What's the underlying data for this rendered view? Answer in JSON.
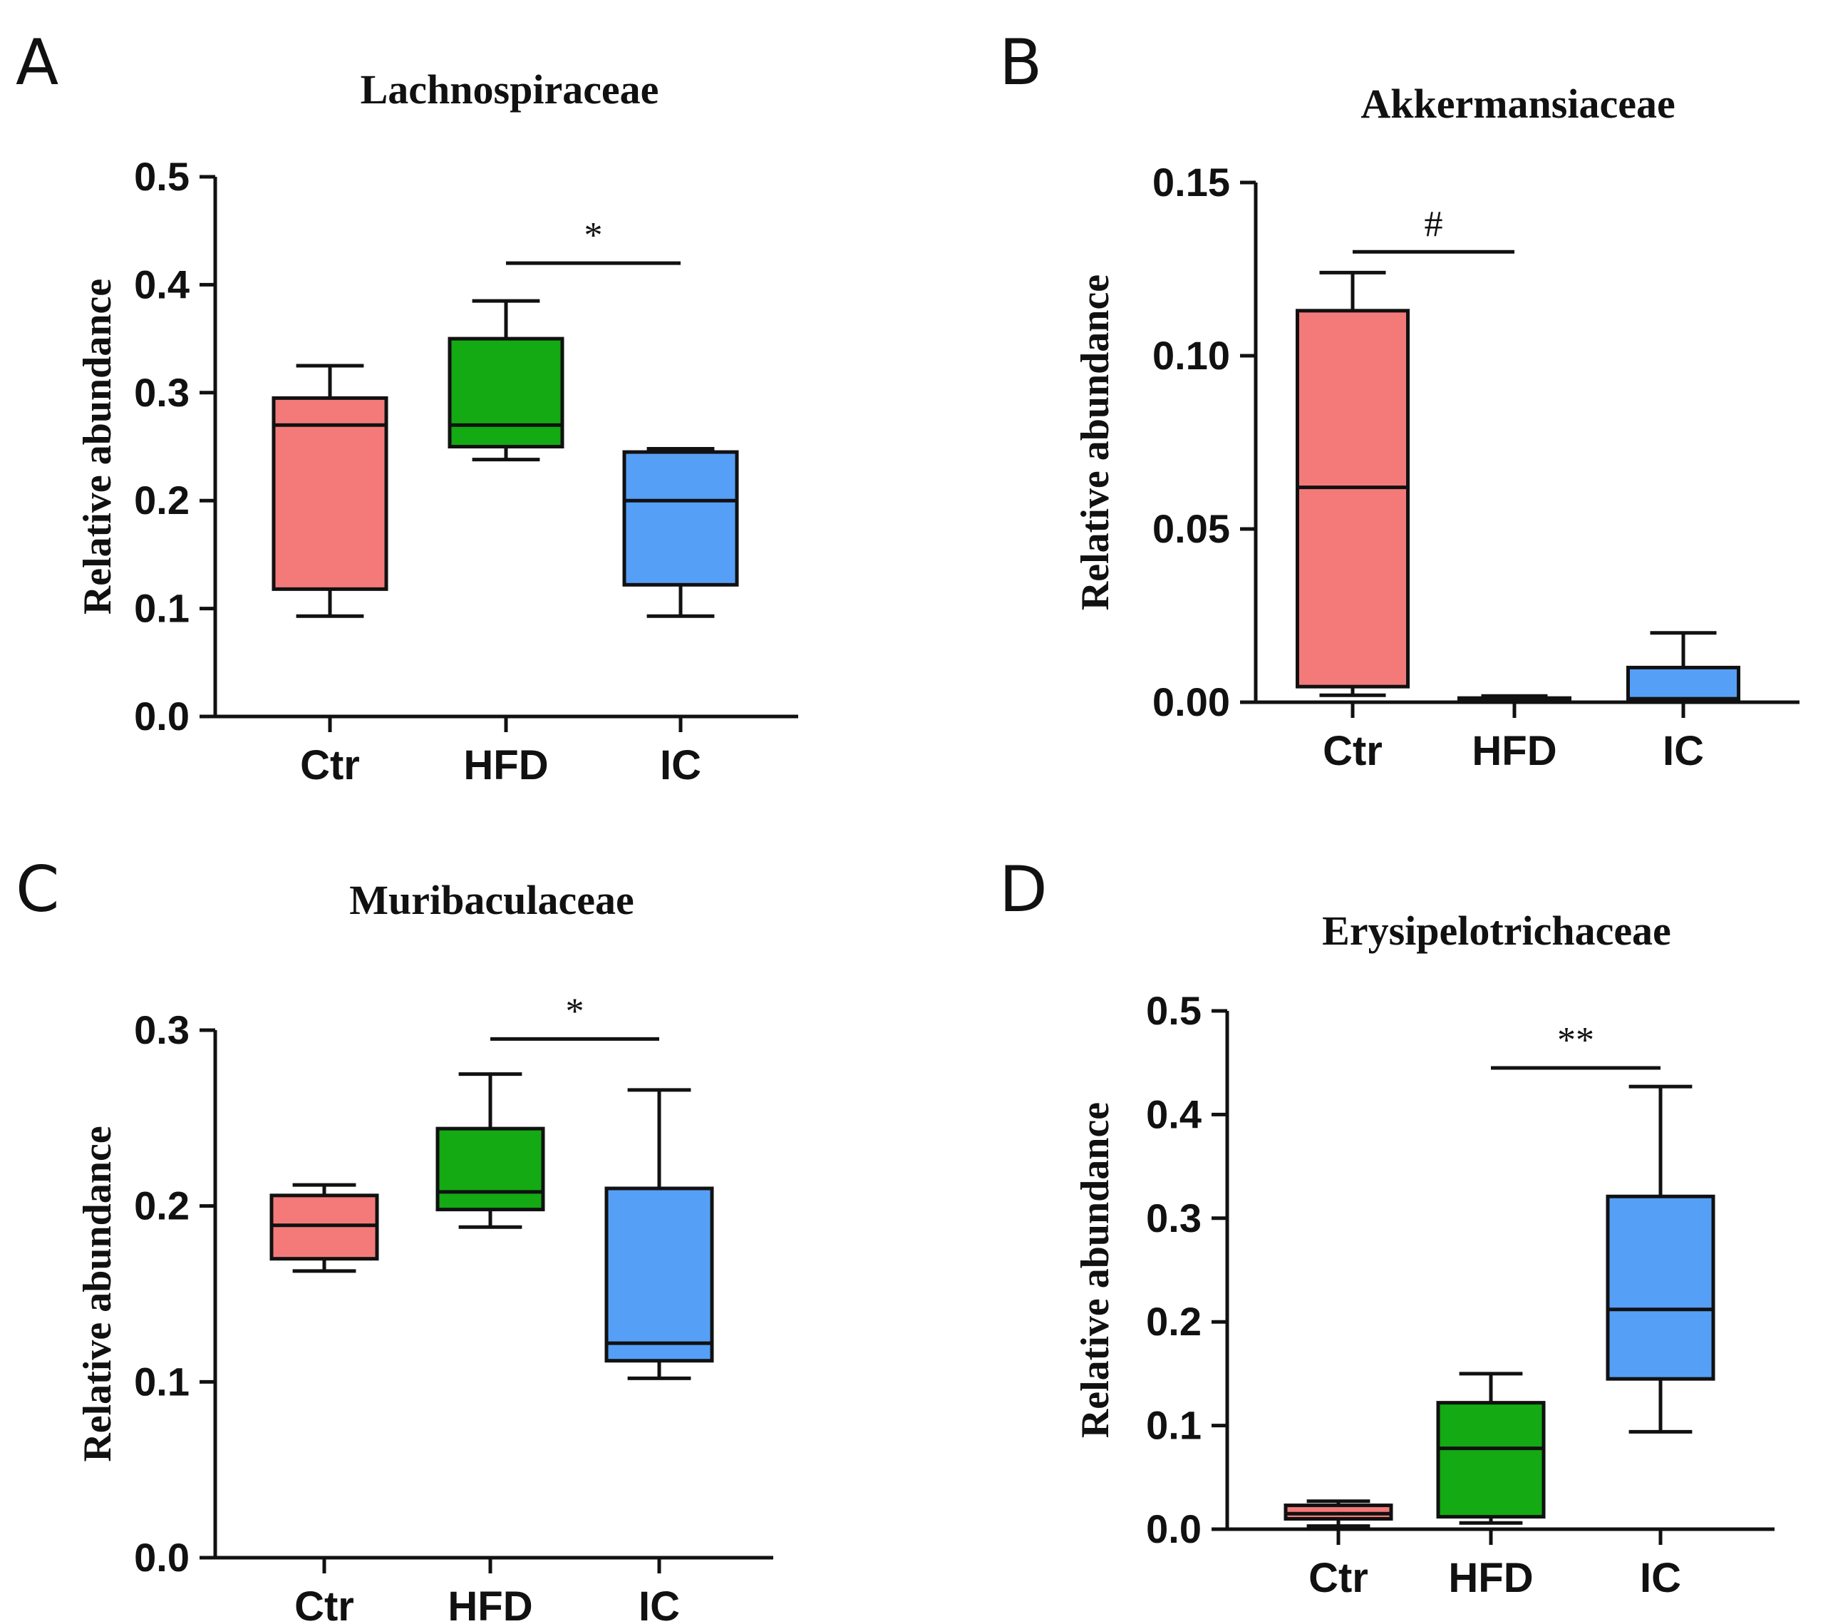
{
  "chart_data": [
    {
      "panel": "A",
      "type": "box",
      "title": "Lachnospiraceae",
      "ylabel": "Relative abundance",
      "ylim": [
        0,
        0.5
      ],
      "yticks": [
        "0.0",
        "0.1",
        "0.2",
        "0.3",
        "0.4",
        "0.5"
      ],
      "categories": [
        "Ctr",
        "HFD",
        "IC"
      ],
      "colors": [
        "#f47a7a",
        "#13aa13",
        "#569ff7"
      ],
      "boxes": [
        {
          "min": 0.093,
          "q1": 0.118,
          "median": 0.27,
          "q3": 0.295,
          "max": 0.325
        },
        {
          "min": 0.238,
          "q1": 0.25,
          "median": 0.27,
          "q3": 0.35,
          "max": 0.385
        },
        {
          "min": 0.093,
          "q1": 0.122,
          "median": 0.2,
          "q3": 0.245,
          "max": 0.248
        }
      ],
      "significance": [
        {
          "from": 1,
          "to": 2,
          "label": "*",
          "y": 0.42
        }
      ]
    },
    {
      "panel": "B",
      "type": "box",
      "title": "Akkermansiaceae",
      "ylabel": "Relative abundance",
      "ylim": [
        0,
        0.15
      ],
      "yticks": [
        "0.00",
        "0.05",
        "0.10",
        "0.15"
      ],
      "categories": [
        "Ctr",
        "HFD",
        "IC"
      ],
      "colors": [
        "#f47a7a",
        "#13aa13",
        "#569ff7"
      ],
      "boxes": [
        {
          "min": 0.002,
          "q1": 0.0045,
          "median": 0.062,
          "q3": 0.113,
          "max": 0.124
        },
        {
          "min": 0.0002,
          "q1": 0.0005,
          "median": 0.0008,
          "q3": 0.0012,
          "max": 0.0018
        },
        {
          "min": 0.0003,
          "q1": 0.0008,
          "median": 0.001,
          "q3": 0.01,
          "max": 0.02
        }
      ],
      "significance": [
        {
          "from": 0,
          "to": 1,
          "label": "#",
          "y": 0.13
        }
      ]
    },
    {
      "panel": "C",
      "type": "box",
      "title": "Muribaculaceae",
      "ylabel": "Relative abundance",
      "ylim": [
        0,
        0.3
      ],
      "yticks": [
        "0.0",
        "0.1",
        "0.2",
        "0.3"
      ],
      "categories": [
        "Ctr",
        "HFD",
        "IC"
      ],
      "colors": [
        "#f47a7a",
        "#13aa13",
        "#569ff7"
      ],
      "boxes": [
        {
          "min": 0.163,
          "q1": 0.17,
          "median": 0.189,
          "q3": 0.206,
          "max": 0.212
        },
        {
          "min": 0.188,
          "q1": 0.198,
          "median": 0.208,
          "q3": 0.244,
          "max": 0.275
        },
        {
          "min": 0.102,
          "q1": 0.112,
          "median": 0.122,
          "q3": 0.21,
          "max": 0.266
        }
      ],
      "significance": [
        {
          "from": 1,
          "to": 2,
          "label": "*",
          "y": 0.295
        }
      ]
    },
    {
      "panel": "D",
      "type": "box",
      "title": "Erysipelotrichaceae",
      "ylabel": "Relative abundance",
      "ylim": [
        0,
        0.5
      ],
      "yticks": [
        "0.0",
        "0.1",
        "0.2",
        "0.3",
        "0.4",
        "0.5"
      ],
      "categories": [
        "Ctr",
        "HFD",
        "IC"
      ],
      "colors": [
        "#f47a7a",
        "#13aa13",
        "#569ff7"
      ],
      "boxes": [
        {
          "min": 0.003,
          "q1": 0.01,
          "median": 0.015,
          "q3": 0.023,
          "max": 0.027
        },
        {
          "min": 0.006,
          "q1": 0.012,
          "median": 0.078,
          "q3": 0.122,
          "max": 0.15
        },
        {
          "min": 0.094,
          "q1": 0.145,
          "median": 0.212,
          "q3": 0.321,
          "max": 0.427
        }
      ],
      "significance": [
        {
          "from": 1,
          "to": 2,
          "label": "**",
          "y": 0.445
        }
      ]
    }
  ]
}
